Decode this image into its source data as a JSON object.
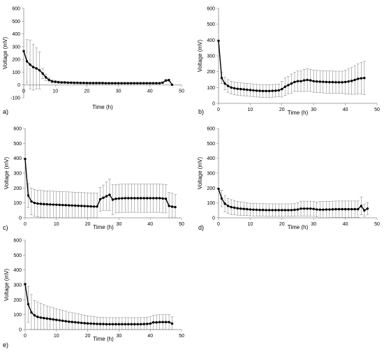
{
  "chart_data": [
    {
      "type": "line",
      "panel_label": "a)",
      "xlabel": "Time (h)",
      "ylabel": "Voltage (mV)",
      "xlim": [
        0,
        50
      ],
      "ylim": [
        -100,
        600
      ],
      "xticks": [
        0,
        10,
        20,
        30,
        40,
        50
      ],
      "yticks": [
        -100,
        0,
        100,
        200,
        300,
        400,
        500,
        600
      ],
      "grid": false,
      "error_bars": true,
      "x": [
        0,
        1,
        2,
        3,
        4,
        5,
        6,
        7,
        8,
        9,
        10,
        11,
        12,
        13,
        14,
        15,
        16,
        17,
        18,
        19,
        20,
        21,
        22,
        23,
        24,
        25,
        26,
        27,
        28,
        29,
        30,
        31,
        32,
        33,
        34,
        35,
        36,
        37,
        38,
        39,
        40,
        41,
        42,
        43,
        44,
        45,
        46,
        47
      ],
      "values": [
        265,
        185,
        160,
        140,
        130,
        115,
        90,
        60,
        40,
        28,
        25,
        22,
        20,
        20,
        18,
        18,
        17,
        17,
        16,
        16,
        15,
        15,
        15,
        15,
        15,
        15,
        14,
        14,
        14,
        14,
        14,
        14,
        14,
        14,
        14,
        14,
        14,
        14,
        14,
        14,
        14,
        14,
        14,
        14,
        18,
        35,
        38,
        2
      ],
      "errors": [
        0,
        170,
        190,
        180,
        160,
        145,
        40,
        25,
        15,
        12,
        10,
        9,
        8,
        8,
        7,
        7,
        7,
        7,
        6,
        6,
        6,
        6,
        6,
        6,
        6,
        6,
        5,
        5,
        5,
        5,
        5,
        5,
        5,
        5,
        5,
        5,
        5,
        5,
        5,
        5,
        5,
        5,
        5,
        5,
        5,
        8,
        8,
        0
      ]
    },
    {
      "type": "line",
      "panel_label": "b)",
      "xlabel": "Time (h)",
      "ylabel": "Voltage (mV)",
      "xlim": [
        0,
        50
      ],
      "ylim": [
        0,
        600
      ],
      "xticks": [
        0,
        10,
        20,
        30,
        40,
        50
      ],
      "yticks": [
        0,
        100,
        200,
        300,
        400,
        500,
        600
      ],
      "grid": false,
      "error_bars": true,
      "x": [
        0,
        1,
        2,
        3,
        4,
        5,
        6,
        7,
        8,
        9,
        10,
        11,
        12,
        13,
        14,
        15,
        16,
        17,
        18,
        19,
        20,
        21,
        22,
        23,
        24,
        25,
        26,
        27,
        28,
        29,
        30,
        31,
        32,
        33,
        34,
        35,
        36,
        37,
        38,
        39,
        40,
        41,
        42,
        43,
        44,
        45,
        46
      ],
      "values": [
        395,
        160,
        125,
        110,
        100,
        95,
        92,
        90,
        88,
        86,
        84,
        82,
        80,
        79,
        78,
        78,
        78,
        79,
        80,
        82,
        90,
        105,
        115,
        125,
        135,
        140,
        140,
        145,
        148,
        145,
        140,
        138,
        137,
        136,
        135,
        134,
        134,
        133,
        133,
        133,
        135,
        138,
        142,
        148,
        155,
        158,
        160
      ],
      "errors": [
        0,
        35,
        40,
        40,
        40,
        40,
        40,
        40,
        40,
        40,
        40,
        40,
        40,
        40,
        40,
        40,
        40,
        40,
        40,
        40,
        50,
        55,
        55,
        60,
        60,
        65,
        65,
        70,
        70,
        70,
        70,
        70,
        70,
        70,
        70,
        70,
        70,
        70,
        70,
        70,
        75,
        80,
        85,
        90,
        95,
        100,
        105
      ]
    },
    {
      "type": "line",
      "panel_label": "c)",
      "xlabel": "Time (h)",
      "ylabel": "Voltage (mV)",
      "xlim": [
        0,
        50
      ],
      "ylim": [
        0,
        600
      ],
      "xticks": [
        0,
        10,
        20,
        30,
        40,
        50
      ],
      "yticks": [
        0,
        100,
        200,
        300,
        400,
        500,
        600
      ],
      "grid": false,
      "error_bars": true,
      "x": [
        0,
        1,
        2,
        3,
        4,
        5,
        6,
        7,
        8,
        9,
        10,
        11,
        12,
        13,
        14,
        15,
        16,
        17,
        18,
        19,
        20,
        21,
        22,
        23,
        24,
        25,
        26,
        27,
        28,
        29,
        30,
        31,
        32,
        33,
        34,
        35,
        36,
        37,
        38,
        39,
        40,
        41,
        42,
        43,
        44,
        45,
        46,
        47,
        48
      ],
      "values": [
        395,
        150,
        110,
        100,
        96,
        94,
        92,
        91,
        90,
        89,
        88,
        87,
        86,
        85,
        84,
        83,
        82,
        81,
        80,
        79,
        78,
        77,
        76,
        76,
        125,
        135,
        145,
        155,
        122,
        128,
        130,
        131,
        132,
        132,
        132,
        132,
        132,
        132,
        132,
        132,
        132,
        132,
        132,
        132,
        130,
        128,
        80,
        75,
        72
      ],
      "errors": [
        0,
        80,
        90,
        90,
        90,
        90,
        90,
        90,
        90,
        90,
        90,
        90,
        90,
        90,
        90,
        90,
        90,
        90,
        90,
        90,
        90,
        90,
        90,
        90,
        80,
        85,
        95,
        105,
        100,
        95,
        95,
        95,
        95,
        95,
        95,
        95,
        95,
        95,
        95,
        95,
        95,
        95,
        95,
        95,
        95,
        95,
        90,
        90,
        85
      ]
    },
    {
      "type": "line",
      "panel_label": "d)",
      "xlabel": "Time (h)",
      "ylabel": "Voltage (mV)",
      "xlim": [
        0,
        50
      ],
      "ylim": [
        0,
        600
      ],
      "xticks": [
        0,
        10,
        20,
        30,
        40,
        50
      ],
      "yticks": [
        0,
        100,
        200,
        300,
        400,
        500,
        600
      ],
      "grid": false,
      "error_bars": true,
      "x": [
        0,
        1,
        2,
        3,
        4,
        5,
        6,
        7,
        8,
        9,
        10,
        11,
        12,
        13,
        14,
        15,
        16,
        17,
        18,
        19,
        20,
        21,
        22,
        23,
        24,
        25,
        26,
        27,
        28,
        29,
        30,
        31,
        32,
        33,
        34,
        35,
        36,
        37,
        38,
        39,
        40,
        41,
        42,
        43,
        44,
        45,
        46,
        47
      ],
      "values": [
        195,
        130,
        95,
        80,
        72,
        68,
        64,
        62,
        60,
        58,
        56,
        55,
        54,
        53,
        53,
        52,
        52,
        52,
        52,
        52,
        52,
        52,
        52,
        52,
        54,
        56,
        62,
        62,
        62,
        62,
        60,
        56,
        55,
        55,
        56,
        56,
        57,
        58,
        58,
        58,
        58,
        58,
        58,
        58,
        58,
        80,
        50,
        62
      ],
      "errors": [
        0,
        55,
        55,
        50,
        50,
        48,
        46,
        45,
        44,
        43,
        42,
        42,
        42,
        42,
        42,
        42,
        42,
        42,
        42,
        42,
        42,
        42,
        42,
        42,
        42,
        45,
        50,
        50,
        50,
        50,
        50,
        50,
        55,
        55,
        55,
        55,
        55,
        55,
        55,
        55,
        55,
        55,
        55,
        55,
        55,
        60,
        40,
        40
      ]
    },
    {
      "type": "line",
      "panel_label": "e)",
      "xlabel": "Time (h)",
      "ylabel": "Voltage (mV)",
      "xlim": [
        0,
        50
      ],
      "ylim": [
        0,
        600
      ],
      "xticks": [
        0,
        10,
        20,
        30,
        40,
        50
      ],
      "yticks": [
        0,
        100,
        200,
        300,
        400,
        500,
        600
      ],
      "grid": false,
      "error_bars": true,
      "x": [
        0,
        1,
        2,
        3,
        4,
        5,
        6,
        7,
        8,
        9,
        10,
        11,
        12,
        13,
        14,
        15,
        16,
        17,
        18,
        19,
        20,
        21,
        22,
        23,
        24,
        25,
        26,
        27,
        28,
        29,
        30,
        31,
        32,
        33,
        34,
        35,
        36,
        37,
        38,
        39,
        40,
        41,
        42,
        43,
        44,
        45,
        46,
        47
      ],
      "values": [
        305,
        170,
        115,
        95,
        85,
        80,
        77,
        74,
        71,
        68,
        65,
        62,
        59,
        56,
        53,
        51,
        49,
        47,
        45,
        43,
        41,
        40,
        39,
        38,
        37,
        37,
        36,
        36,
        36,
        36,
        36,
        36,
        36,
        36,
        36,
        36,
        36,
        36,
        37,
        38,
        40,
        48,
        48,
        50,
        50,
        50,
        50,
        40
      ],
      "errors": [
        0,
        120,
        120,
        100,
        100,
        95,
        90,
        85,
        80,
        78,
        75,
        72,
        70,
        67,
        64,
        62,
        60,
        58,
        56,
        54,
        52,
        50,
        48,
        46,
        45,
        45,
        44,
        44,
        44,
        44,
        44,
        44,
        44,
        44,
        44,
        44,
        44,
        44,
        44,
        45,
        46,
        48,
        50,
        50,
        50,
        50,
        50,
        45
      ]
    }
  ]
}
